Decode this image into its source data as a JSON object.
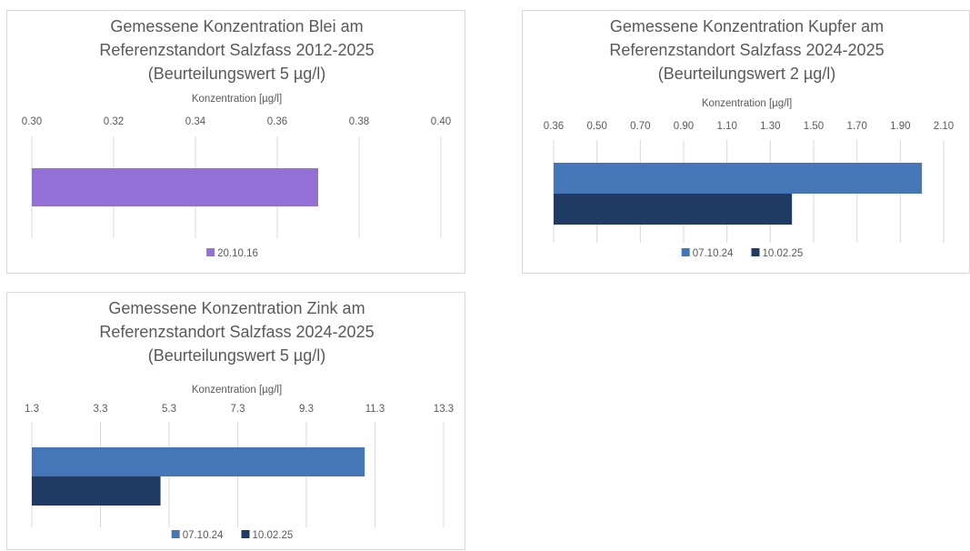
{
  "chart_data": [
    {
      "type": "bar",
      "orientation": "horizontal",
      "title_lines": [
        "Gemessene  Konzentration Blei am",
        "Referenzstandort Salzfass  2012-2025",
        "(Beurteilungswert 5 µg/l)"
      ],
      "xlabel": "Konzentration [µg/l]",
      "axis_position": "top",
      "ticks": [
        "0.30",
        "0.32",
        "0.34",
        "0.36",
        "0.38",
        "0.40"
      ],
      "xlim": [
        0.3,
        0.4
      ],
      "categories": [
        ""
      ],
      "series": [
        {
          "name": "20.10.16",
          "color": "#9370d6",
          "values": [
            0.37
          ]
        }
      ],
      "legend_position": "bottom",
      "grid": true
    },
    {
      "type": "bar",
      "orientation": "horizontal",
      "title_lines": [
        "Gemessene Konzentration Kupfer am",
        "Referenzstandort Salzfass  2024-2025",
        "(Beurteilungswert 2 µg/l)"
      ],
      "xlabel": "Konzentration [µg/l]",
      "axis_position": "top",
      "ticks": [
        "0.36",
        "0.50",
        "0.70",
        "0.90",
        "1.10",
        "1.30",
        "1.50",
        "1.70",
        "1.90",
        "2.10"
      ],
      "tick_values": [
        0.36,
        0.5,
        0.7,
        0.9,
        1.1,
        1.3,
        1.5,
        1.7,
        1.9,
        2.1
      ],
      "xlim": [
        0.3,
        2.1
      ],
      "categories": [
        ""
      ],
      "series": [
        {
          "name": "07.10.24",
          "color": "#4577b8",
          "values": [
            2.0
          ]
        },
        {
          "name": "10.02.25",
          "color": "#1f3a63",
          "values": [
            1.4
          ]
        }
      ],
      "legend_position": "bottom",
      "grid": true
    },
    {
      "type": "bar",
      "orientation": "horizontal",
      "title_lines": [
        "Gemessene Konzentration Zink am",
        "Referenzstandort Salzfass  2024-2025",
        "(Beurteilungswert 5 µg/l)"
      ],
      "xlabel": "Konzentration [µg/l]",
      "axis_position": "top",
      "ticks": [
        "1.3",
        "3.3",
        "5.3",
        "7.3",
        "9.3",
        "11.3",
        "13.3"
      ],
      "xlim": [
        1.3,
        13.3
      ],
      "categories": [
        ""
      ],
      "series": [
        {
          "name": "07.10.24",
          "color": "#4577b8",
          "values": [
            11.0
          ]
        },
        {
          "name": "10.02.25",
          "color": "#1f3a63",
          "values": [
            5.05
          ]
        }
      ],
      "legend_position": "bottom",
      "grid": true
    }
  ]
}
